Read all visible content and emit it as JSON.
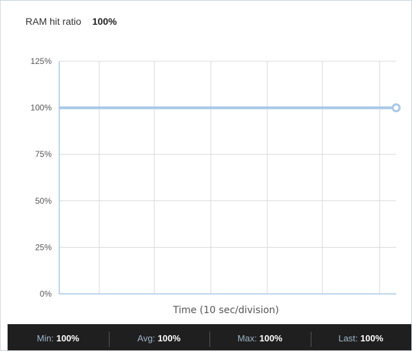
{
  "header": {
    "title": "RAM hit ratio",
    "current_value": "100%"
  },
  "chart_data": {
    "type": "line",
    "xlabel": "Time (10 sec/division)",
    "ylabel": "",
    "ylim": [
      0,
      125
    ],
    "y_ticks": [
      "0%",
      "25%",
      "50%",
      "75%",
      "100%",
      "125%"
    ],
    "y_tick_values": [
      0,
      25,
      50,
      75,
      100,
      125
    ],
    "x_divisions": 6,
    "grid": true,
    "series": [
      {
        "values": [
          100,
          100,
          100,
          100,
          100,
          100,
          100
        ],
        "color": "#a8c8e8"
      }
    ]
  },
  "stats": [
    {
      "label": "Min:",
      "value": "100%"
    },
    {
      "label": "Avg:",
      "value": "100%"
    },
    {
      "label": "Max:",
      "value": "100%"
    },
    {
      "label": "Last:",
      "value": "100%"
    }
  ],
  "colors": {
    "series": "#a8c8e8",
    "axis": "#a8c8e8",
    "grid": "#d9d9d9",
    "stats_bg": "#1f1f1f"
  }
}
